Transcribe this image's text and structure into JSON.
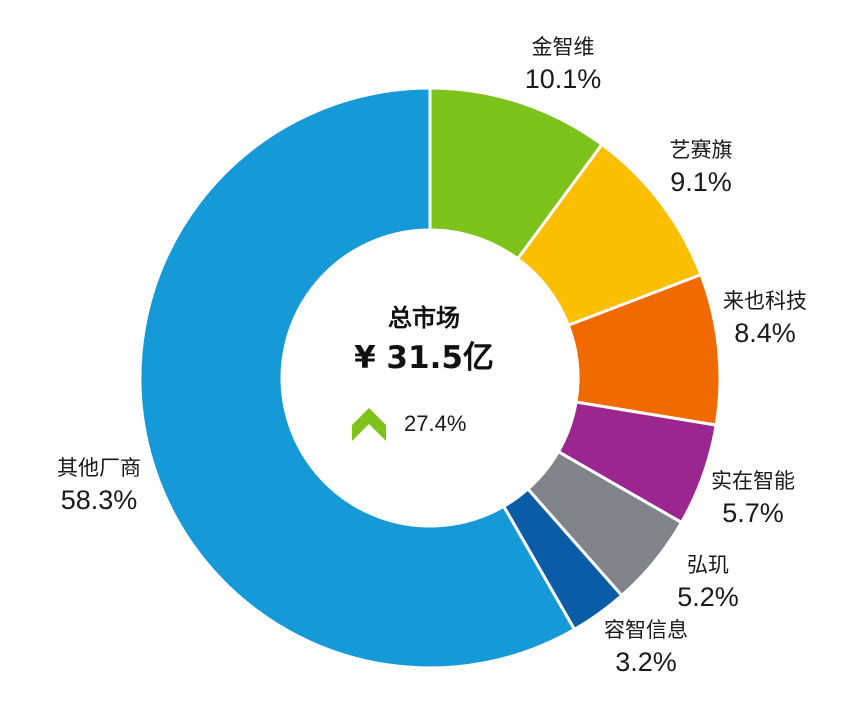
{
  "chart_data": {
    "type": "pie",
    "variant": "donut",
    "categories": [
      "金智维",
      "艺赛旗",
      "来也科技",
      "实在智能",
      "弘玑",
      "容智信息",
      "其他厂商"
    ],
    "values": [
      10.1,
      9.1,
      8.4,
      5.7,
      5.2,
      3.2,
      58.3
    ],
    "labels": [
      "10.1%",
      "9.1%",
      "8.4%",
      "5.7%",
      "5.2%",
      "3.2%",
      "58.3%"
    ],
    "colors": [
      "#7dc31b",
      "#fbbf00",
      "#f06a00",
      "#9b2690",
      "#808389",
      "#0a5ca7",
      "#1699d7"
    ],
    "start": "12 o'clock",
    "direction": "clockwise",
    "legend": "none"
  },
  "center": {
    "title": "总市场",
    "value": "¥ 31.5亿",
    "growth": "27.4%",
    "growth_icon": "chevron-up-icon",
    "growth_color": "#7dc31b"
  }
}
